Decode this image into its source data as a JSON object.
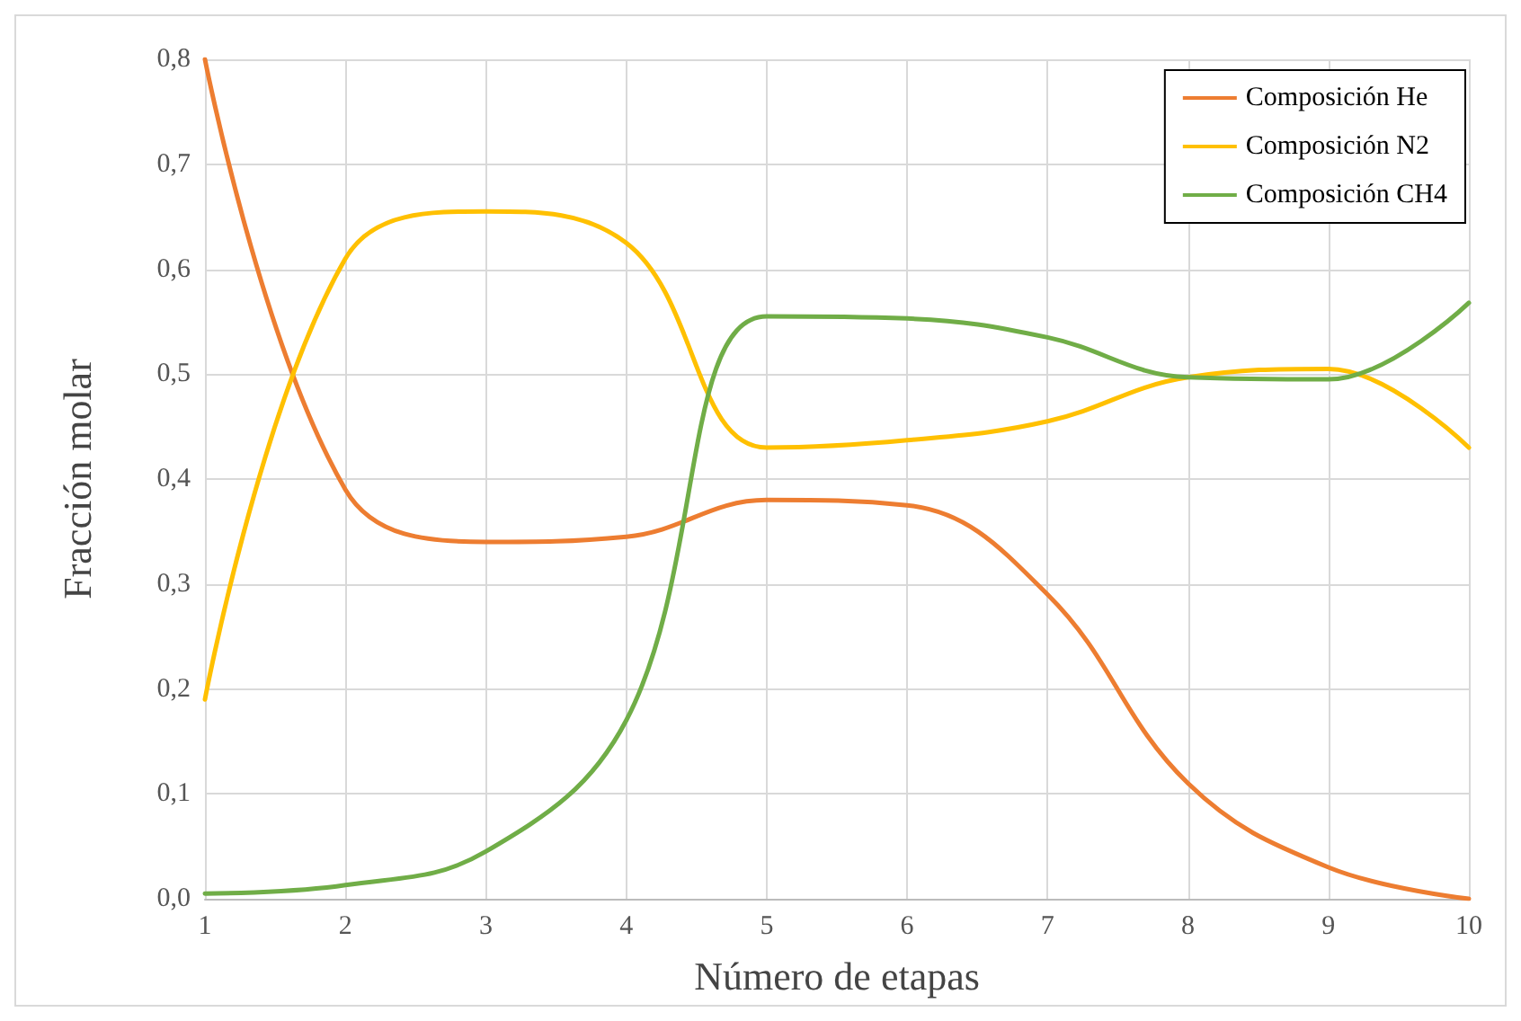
{
  "chart_data": {
    "type": "line",
    "xlabel": "Número de etapas",
    "ylabel": "Fracción molar",
    "x": [
      1,
      2,
      3,
      4,
      5,
      6,
      7,
      8,
      9,
      10
    ],
    "series": [
      {
        "name": "Composición He",
        "color": "#ed7d31",
        "values": [
          0.8,
          0.39,
          0.34,
          0.345,
          0.38,
          0.375,
          0.29,
          0.11,
          0.03,
          0.0
        ]
      },
      {
        "name": "Composición N2",
        "color": "#ffc000",
        "values": [
          0.19,
          0.61,
          0.655,
          0.625,
          0.43,
          0.437,
          0.455,
          0.497,
          0.505,
          0.43
        ]
      },
      {
        "name": "Composición CH4",
        "color": "#70ad47",
        "values": [
          0.005,
          0.013,
          0.045,
          0.17,
          0.555,
          0.553,
          0.535,
          0.497,
          0.495,
          0.568
        ]
      }
    ],
    "xlim": [
      1,
      10
    ],
    "xticks": [
      1,
      2,
      3,
      4,
      5,
      6,
      7,
      8,
      9,
      10
    ],
    "ylim": [
      0,
      0.8
    ],
    "yticks": [
      {
        "value": 0,
        "label": "0,0"
      },
      {
        "value": 0.1,
        "label": "0,1"
      },
      {
        "value": 0.2,
        "label": "0,2"
      },
      {
        "value": 0.3,
        "label": "0,3"
      },
      {
        "value": 0.4,
        "label": "0,4"
      },
      {
        "value": 0.5,
        "label": "0,5"
      },
      {
        "value": 0.6,
        "label": "0,6"
      },
      {
        "value": 0.7,
        "label": "0,7"
      },
      {
        "value": 0.8,
        "label": "0,8"
      }
    ],
    "grid": true,
    "legend": "top right",
    "marker": "none",
    "line_style": "solid"
  }
}
